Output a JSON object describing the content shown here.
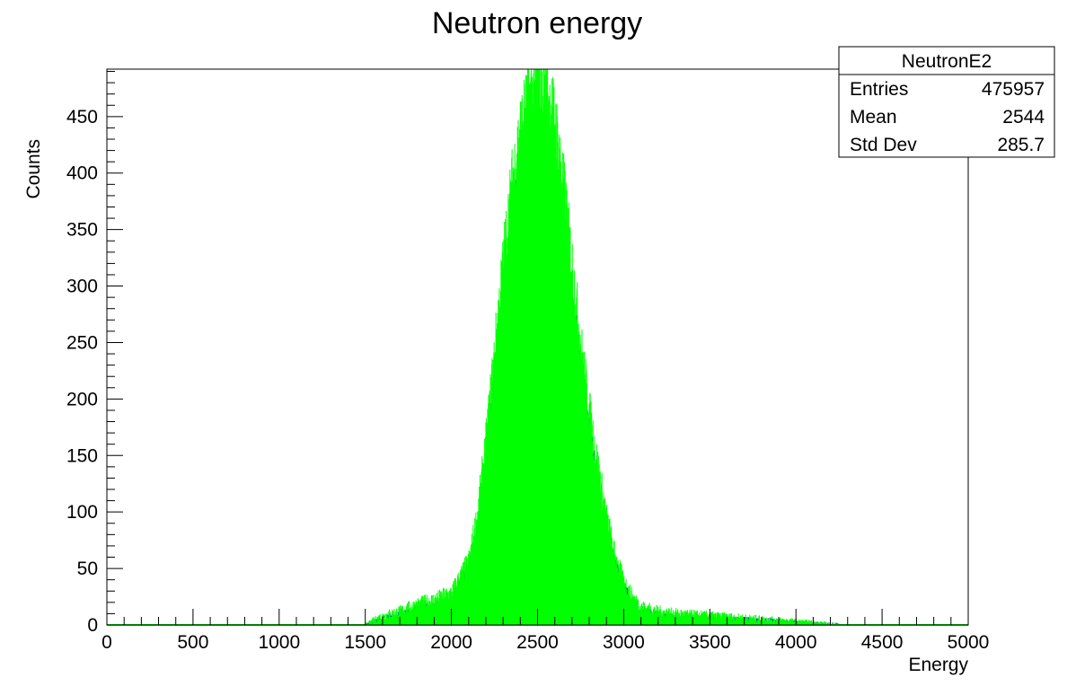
{
  "chart_data": {
    "type": "area",
    "title": "Neutron energy",
    "xlabel": "Energy",
    "ylabel": "Counts",
    "xlim": [
      0,
      5000
    ],
    "ylim": [
      0,
      492
    ],
    "x_ticks": [
      0,
      500,
      1000,
      1500,
      2000,
      2500,
      3000,
      3500,
      4000,
      4500,
      5000
    ],
    "y_ticks": [
      0,
      50,
      100,
      150,
      200,
      250,
      300,
      350,
      400,
      450
    ],
    "grid": false,
    "stats_box": {
      "name": "NeutronE2",
      "rows": [
        {
          "label": "Entries",
          "value": "475957"
        },
        {
          "label": "Mean",
          "value": "2544"
        },
        {
          "label": "Std Dev",
          "value": "285.7"
        }
      ]
    },
    "series": [
      {
        "color": "#0000ff",
        "x": [
          1500,
          1600,
          1700,
          1800,
          1900,
          2000,
          2100,
          2150,
          2200,
          2250,
          2300,
          2350,
          2400,
          2450,
          2500,
          2550,
          2600,
          2650,
          2700,
          2750,
          2800,
          2850,
          2900,
          2950,
          3000,
          3050,
          3100,
          3200,
          3300,
          3500,
          3700,
          3900,
          4100,
          4250
        ],
        "y": [
          0,
          5,
          8,
          12,
          15,
          20,
          45,
          80,
          140,
          210,
          280,
          340,
          390,
          410,
          410,
          405,
          390,
          340,
          280,
          220,
          165,
          120,
          80,
          50,
          30,
          20,
          12,
          8,
          6,
          5,
          4,
          3,
          1,
          0
        ]
      },
      {
        "color": "#00ff00",
        "x": [
          1500,
          1600,
          1700,
          1800,
          1900,
          2000,
          2100,
          2150,
          2200,
          2250,
          2300,
          2350,
          2400,
          2450,
          2500,
          2550,
          2600,
          2650,
          2700,
          2750,
          2800,
          2850,
          2900,
          2950,
          3000,
          3050,
          3100,
          3200,
          3300,
          3500,
          3700,
          3900,
          4100,
          4250
        ],
        "y": [
          0,
          8,
          12,
          18,
          22,
          28,
          55,
          95,
          160,
          240,
          320,
          390,
          440,
          470,
          480,
          475,
          450,
          390,
          320,
          250,
          190,
          140,
          95,
          60,
          38,
          25,
          16,
          12,
          10,
          8,
          6,
          4,
          2,
          0
        ]
      }
    ]
  }
}
